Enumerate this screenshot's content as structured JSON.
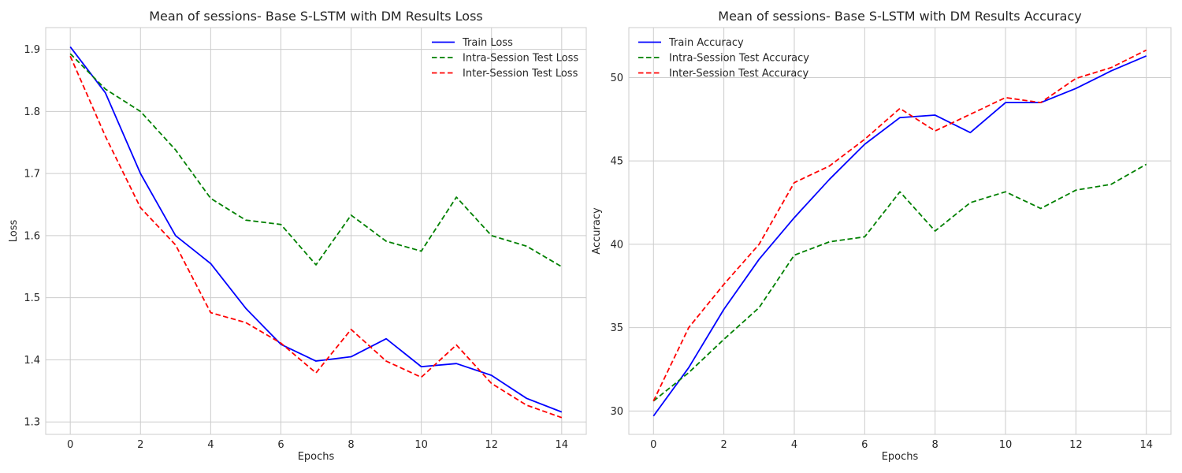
{
  "chart_data": [
    {
      "type": "line",
      "title": "Mean of sessions- Base S-LSTM with DM Results Loss",
      "xlabel": "Epochs",
      "ylabel": "Loss",
      "xlim": [
        -0.7,
        14.7
      ],
      "ylim": [
        1.28,
        1.935
      ],
      "xticks": [
        0,
        2,
        4,
        6,
        8,
        10,
        12,
        14
      ],
      "yticks": [
        1.3,
        1.4,
        1.5,
        1.6,
        1.7,
        1.8,
        1.9
      ],
      "ytick_labels": [
        "1.3",
        "1.4",
        "1.5",
        "1.6",
        "1.7",
        "1.8",
        "1.9"
      ],
      "grid": true,
      "legend_position": "top-right",
      "x": [
        0,
        1,
        2,
        3,
        4,
        5,
        6,
        7,
        8,
        9,
        10,
        11,
        12,
        13,
        14
      ],
      "series": [
        {
          "name": "Train Loss",
          "color": "#0000ff",
          "dash": "solid",
          "values": [
            1.904,
            1.83,
            1.7,
            1.6,
            1.555,
            1.483,
            1.425,
            1.398,
            1.405,
            1.434,
            1.389,
            1.394,
            1.375,
            1.338,
            1.316
          ]
        },
        {
          "name": "Intra-Session Test Loss",
          "color": "#008000",
          "dash": "dashed",
          "values": [
            1.893,
            1.836,
            1.8,
            1.738,
            1.66,
            1.625,
            1.618,
            1.553,
            1.633,
            1.591,
            1.575,
            1.662,
            1.6,
            1.583,
            1.55
          ]
        },
        {
          "name": "Inter-Session Test Loss",
          "color": "#ff0000",
          "dash": "dashed",
          "values": [
            1.889,
            1.76,
            1.645,
            1.585,
            1.476,
            1.46,
            1.427,
            1.379,
            1.449,
            1.398,
            1.372,
            1.424,
            1.362,
            1.327,
            1.307
          ]
        }
      ]
    },
    {
      "type": "line",
      "title": "Mean of sessions- Base S-LSTM with DM Results Accuracy",
      "xlabel": "Epochs",
      "ylabel": "Accuracy",
      "xlim": [
        -0.7,
        14.7
      ],
      "ylim": [
        28.6,
        53.0
      ],
      "xticks": [
        0,
        2,
        4,
        6,
        8,
        10,
        12,
        14
      ],
      "yticks": [
        30,
        35,
        40,
        45,
        50
      ],
      "ytick_labels": [
        "30",
        "35",
        "40",
        "45",
        "50"
      ],
      "grid": true,
      "legend_position": "top-left",
      "x": [
        0,
        1,
        2,
        3,
        4,
        5,
        6,
        7,
        8,
        9,
        10,
        11,
        12,
        13,
        14
      ],
      "series": [
        {
          "name": "Train Accuracy",
          "color": "#0000ff",
          "dash": "solid",
          "values": [
            29.7,
            32.6,
            36.1,
            39.1,
            41.6,
            43.9,
            46.0,
            47.6,
            47.75,
            46.7,
            48.5,
            48.5,
            49.35,
            50.4,
            51.3
          ]
        },
        {
          "name": "Intra-Session Test Accuracy",
          "color": "#008000",
          "dash": "dashed",
          "values": [
            30.6,
            32.3,
            34.3,
            36.2,
            39.35,
            40.15,
            40.45,
            43.15,
            40.8,
            42.5,
            43.15,
            42.15,
            43.25,
            43.6,
            44.8
          ]
        },
        {
          "name": "Inter-Session Test Accuracy",
          "color": "#ff0000",
          "dash": "dashed",
          "values": [
            30.6,
            35.0,
            37.6,
            40.0,
            43.7,
            44.7,
            46.3,
            48.15,
            46.8,
            47.8,
            48.8,
            48.5,
            49.95,
            50.6,
            51.65
          ]
        }
      ]
    }
  ]
}
